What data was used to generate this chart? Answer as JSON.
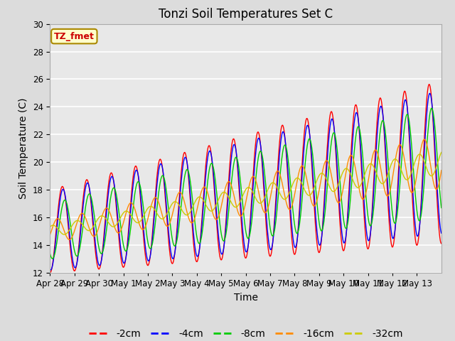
{
  "title": "Tonzi Soil Temperatures Set C",
  "xlabel": "Time",
  "ylabel": "Soil Temperature (C)",
  "ylim": [
    12,
    30
  ],
  "annotation": "TZ_fmet",
  "legend": [
    "-2cm",
    "-4cm",
    "-8cm",
    "-16cm",
    "-32cm"
  ],
  "colors": [
    "#FF0000",
    "#0000FF",
    "#00CC00",
    "#FF8C00",
    "#CCCC00"
  ],
  "xtick_labels": [
    "Apr 28",
    "Apr 29",
    "Apr 30",
    "May 1",
    "May 2",
    "May 3",
    "May 4",
    "May 5",
    "May 6",
    "May 7",
    "May 8",
    "May 9",
    "May 10",
    "May 11",
    "May 12",
    "May 13"
  ],
  "background_color": "#DCDCDC",
  "plot_background": "#E8E8E8",
  "grid_color": "#FFFFFF",
  "title_fontsize": 12,
  "axis_fontsize": 10,
  "tick_fontsize": 8.5,
  "legend_fontsize": 10
}
